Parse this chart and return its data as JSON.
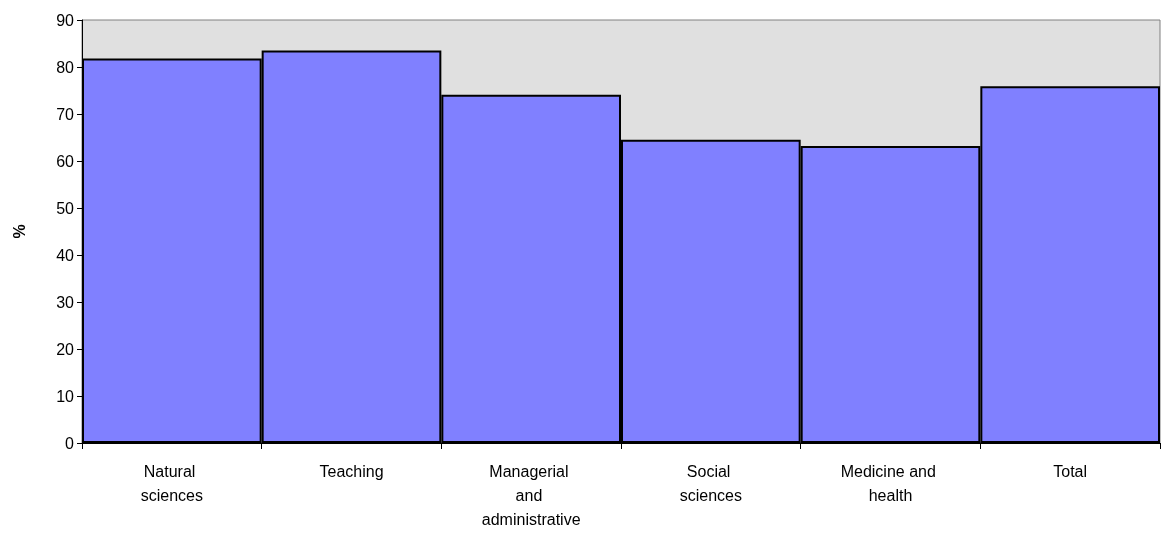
{
  "chart_data": {
    "type": "bar",
    "ylabel": "%",
    "categories": [
      "Natural sciences",
      "Teaching",
      "Managerial and administrative",
      "Social sciences",
      "Medicine and health",
      "Total"
    ],
    "values": [
      81.8,
      83.5,
      74.1,
      64.5,
      63.2,
      75.9
    ],
    "color": "#8080ff",
    "ylim": [
      0,
      90
    ],
    "yticks": [
      0,
      10,
      20,
      30,
      40,
      50,
      60,
      70,
      80,
      90
    ],
    "grid": false
  }
}
